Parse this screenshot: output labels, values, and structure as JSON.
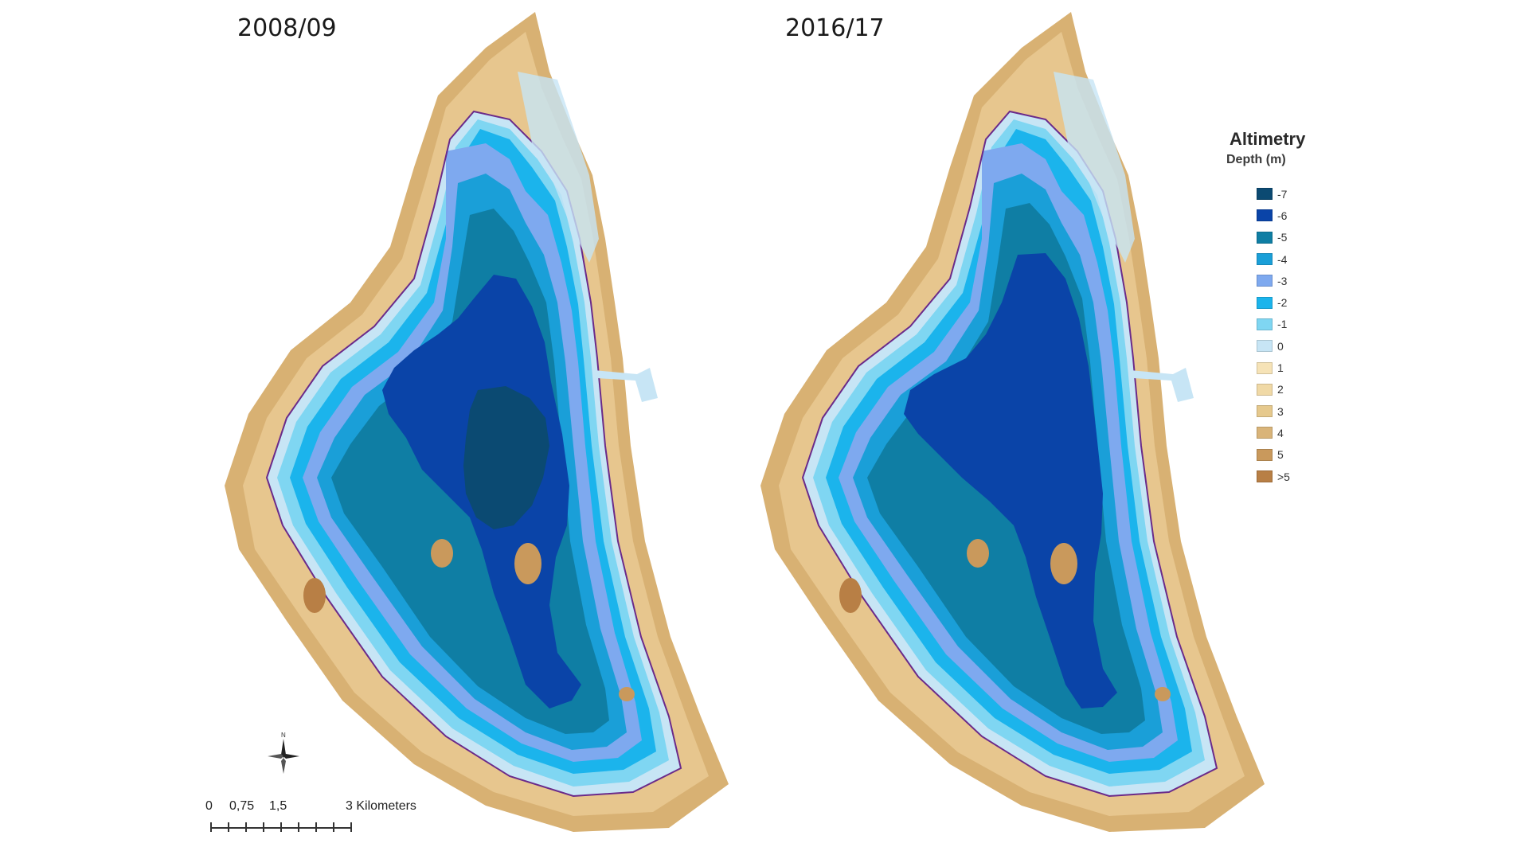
{
  "maps": [
    {
      "title": "2008/09"
    },
    {
      "title": "2016/17"
    }
  ],
  "legend": {
    "title": "Altimetry",
    "subtitle": "Depth (m)",
    "items": [
      {
        "label": "-7",
        "color": "#0b4a72"
      },
      {
        "label": "-6",
        "color": "#0a44a8"
      },
      {
        "label": "-5",
        "color": "#0f7ea4"
      },
      {
        "label": "-4",
        "color": "#1a9fd8"
      },
      {
        "label": "-3",
        "color": "#7ea9ef"
      },
      {
        "label": "-2",
        "color": "#1bb4ec"
      },
      {
        "label": "-1",
        "color": "#7fd6f2"
      },
      {
        "label": "0",
        "color": "#c7e5f5"
      },
      {
        "label": "1",
        "color": "#f6e3b7"
      },
      {
        "label": "2",
        "color": "#f0d9a6"
      },
      {
        "label": "3",
        "color": "#e6c98d"
      },
      {
        "label": "4",
        "color": "#d9b479"
      },
      {
        "label": "5",
        "color": "#c9995c"
      },
      {
        "label": ">5",
        "color": "#b87f45"
      }
    ]
  },
  "scale": {
    "labels": [
      "0",
      "0,75",
      "1,5",
      "3 Kilometers"
    ]
  },
  "compass": {
    "label": "N",
    "icon": "north-arrow-icon"
  }
}
